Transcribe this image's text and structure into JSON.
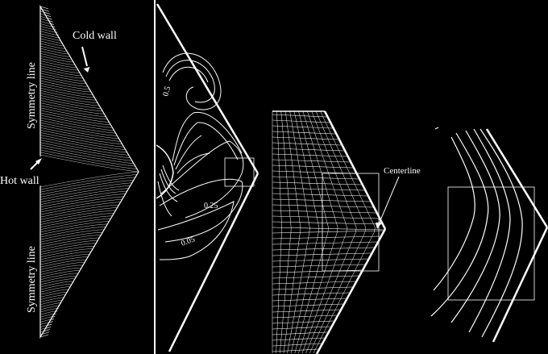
{
  "figure": {
    "background": "#000000",
    "foreground": "#ffffff"
  },
  "panels": [
    {
      "id": "mesh",
      "labels": {
        "cold_wall": "Cold wall",
        "symmetry_top": "Symmetry line",
        "hot_wall": "Hot wall",
        "symmetry_bottom": "Symmetry line"
      }
    },
    {
      "id": "contours",
      "contour_labels": [
        "0.5",
        "0.25",
        "0.05"
      ]
    },
    {
      "id": "mesh-zoom",
      "labels": {
        "centerline": "Centerline"
      }
    },
    {
      "id": "contour-zoom"
    }
  ]
}
